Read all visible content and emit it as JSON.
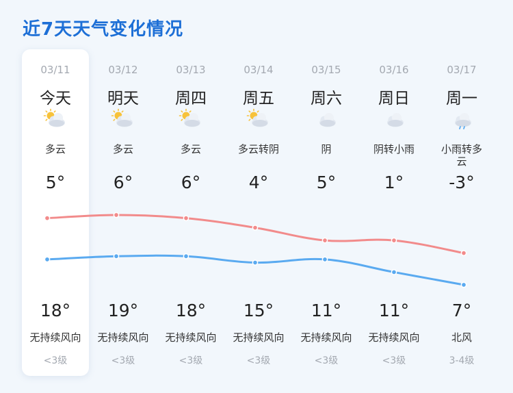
{
  "page": {
    "title": "近7天天气变化情况"
  },
  "days": [
    {
      "date": "03/11",
      "weekday": "今天",
      "icon": "partly-cloudy-icon",
      "desc": "多云",
      "low": "5°",
      "high": "18°",
      "wind": "无持续风向",
      "level": "<3级"
    },
    {
      "date": "03/12",
      "weekday": "明天",
      "icon": "partly-cloudy-icon",
      "desc": "多云",
      "low": "6°",
      "high": "19°",
      "wind": "无持续风向",
      "level": "<3级"
    },
    {
      "date": "03/13",
      "weekday": "周四",
      "icon": "partly-cloudy-icon",
      "desc": "多云",
      "low": "6°",
      "high": "18°",
      "wind": "无持续风向",
      "level": "<3级"
    },
    {
      "date": "03/14",
      "weekday": "周五",
      "icon": "partly-cloudy-icon",
      "desc": "多云转阴",
      "low": "4°",
      "high": "15°",
      "wind": "无持续风向",
      "level": "<3级"
    },
    {
      "date": "03/15",
      "weekday": "周六",
      "icon": "overcast-icon",
      "desc": "阴",
      "low": "5°",
      "high": "11°",
      "wind": "无持续风向",
      "level": "<3级"
    },
    {
      "date": "03/16",
      "weekday": "周日",
      "icon": "overcast-icon",
      "desc": "阴转小雨",
      "low": "1°",
      "high": "11°",
      "wind": "无持续风向",
      "level": "<3级"
    },
    {
      "date": "03/17",
      "weekday": "周一",
      "icon": "light-rain-icon",
      "desc": "小雨转多云",
      "low": "-3°",
      "high": "7°",
      "wind": "北风",
      "level": "3-4级"
    }
  ],
  "chart_data": {
    "type": "line",
    "categories": [
      "03/11",
      "03/12",
      "03/13",
      "03/14",
      "03/15",
      "03/16",
      "03/17"
    ],
    "series": [
      {
        "values": [
          18,
          19,
          18,
          15,
          11,
          11,
          7
        ],
        "color": "#f28b8b"
      },
      {
        "values": [
          5,
          6,
          6,
          4,
          5,
          1,
          -3
        ],
        "color": "#5aaaf0"
      }
    ],
    "ylim": [
      -3,
      19
    ],
    "grid": false
  },
  "colors": {
    "title": "#1d6fd6",
    "card": "#ffffff",
    "background": "#f2f7fc",
    "muted": "#a3a8b0"
  }
}
